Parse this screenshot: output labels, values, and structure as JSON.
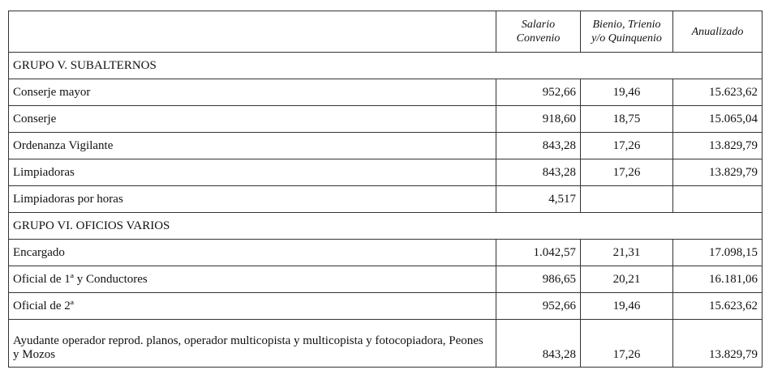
{
  "headers": [
    "",
    "Salario Convenio",
    "Bienio, Trienio y/o Quinquenio",
    "Anualizado"
  ],
  "sections": [
    {
      "title": "GRUPO V. SUBALTERNOS",
      "rows": [
        {
          "name": "Conserje mayor",
          "salario": "952,66",
          "bienio": "19,46",
          "anual": "15.623,62"
        },
        {
          "name": "Conserje",
          "salario": "918,60",
          "bienio": "18,75",
          "anual": "15.065,04"
        },
        {
          "name": "Ordenanza Vigilante",
          "salario": "843,28",
          "bienio": "17,26",
          "anual": "13.829,79"
        },
        {
          "name": "Limpiadoras",
          "salario": "843,28",
          "bienio": "17,26",
          "anual": "13.829,79"
        },
        {
          "name": "Limpiadoras por horas",
          "salario": "4,517",
          "bienio": "",
          "anual": ""
        }
      ]
    },
    {
      "title": "GRUPO VI. OFICIOS VARIOS",
      "rows": [
        {
          "name": "Encargado",
          "salario": "1.042,57",
          "bienio": "21,31",
          "anual": "17.098,15"
        },
        {
          "name": "Oficial de 1ª y Conductores",
          "salario": "986,65",
          "bienio": "20,21",
          "anual": "16.181,06"
        },
        {
          "name": "Oficial de 2ª",
          "salario": "952,66",
          "bienio": "19,46",
          "anual": "15.623,62"
        },
        {
          "name": "Ayudante operador reprod. planos, operador multicopista y multicopista y fotocopiadora, Peones y Mozos",
          "salario": "843,28",
          "bienio": "17,26",
          "anual": "13.829,79"
        }
      ]
    }
  ]
}
